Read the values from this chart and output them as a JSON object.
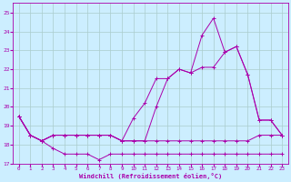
{
  "xlabel": "Windchill (Refroidissement éolien,°C)",
  "background_color": "#cceeff",
  "grid_color": "#aacccc",
  "line_color": "#aa00aa",
  "xlim": [
    -0.5,
    23.5
  ],
  "ylim": [
    17.0,
    25.5
  ],
  "yticks": [
    17,
    18,
    19,
    20,
    21,
    22,
    23,
    24,
    25
  ],
  "xticks": [
    0,
    1,
    2,
    3,
    4,
    5,
    6,
    7,
    8,
    9,
    10,
    11,
    12,
    13,
    14,
    15,
    16,
    17,
    18,
    19,
    20,
    21,
    22,
    23
  ],
  "series1_x": [
    0,
    1,
    2,
    3,
    4,
    5,
    6,
    7,
    8,
    9,
    10,
    11,
    12,
    13,
    14,
    15,
    16,
    17,
    18,
    19,
    20,
    21,
    22,
    23
  ],
  "series1_y": [
    19.5,
    18.5,
    18.2,
    18.5,
    18.5,
    18.5,
    18.5,
    18.5,
    18.5,
    18.2,
    18.2,
    18.2,
    18.2,
    18.2,
    18.2,
    18.2,
    18.2,
    18.2,
    18.2,
    18.2,
    18.2,
    18.5,
    18.5,
    18.5
  ],
  "series2_x": [
    0,
    1,
    2,
    3,
    4,
    5,
    6,
    7,
    8,
    9,
    10,
    11,
    12,
    13,
    14,
    15,
    16,
    17,
    18,
    19,
    20,
    21,
    22,
    23
  ],
  "series2_y": [
    19.5,
    18.5,
    18.2,
    17.8,
    17.5,
    17.5,
    17.5,
    17.2,
    17.5,
    17.5,
    17.5,
    17.5,
    17.5,
    17.5,
    17.5,
    17.5,
    17.5,
    17.5,
    17.5,
    17.5,
    17.5,
    17.5,
    17.5,
    17.5
  ],
  "series3_x": [
    0,
    1,
    2,
    3,
    4,
    5,
    6,
    7,
    8,
    9,
    10,
    11,
    12,
    13,
    14,
    15,
    16,
    17,
    18,
    19,
    20,
    21,
    22,
    23
  ],
  "series3_y": [
    19.5,
    18.5,
    18.2,
    18.5,
    18.5,
    18.5,
    18.5,
    18.5,
    18.5,
    18.2,
    19.4,
    20.2,
    21.5,
    21.5,
    22.0,
    21.8,
    23.8,
    24.7,
    22.9,
    23.2,
    21.7,
    19.3,
    19.3,
    18.5
  ],
  "series4_x": [
    0,
    1,
    2,
    3,
    4,
    5,
    6,
    7,
    8,
    9,
    10,
    11,
    12,
    13,
    14,
    15,
    16,
    17,
    18,
    19,
    20,
    21,
    22,
    23
  ],
  "series4_y": [
    19.5,
    18.5,
    18.2,
    18.5,
    18.5,
    18.5,
    18.5,
    18.5,
    18.5,
    18.2,
    18.2,
    18.2,
    20.0,
    21.5,
    22.0,
    21.8,
    22.1,
    22.1,
    22.9,
    23.2,
    21.7,
    19.3,
    19.3,
    18.5
  ]
}
